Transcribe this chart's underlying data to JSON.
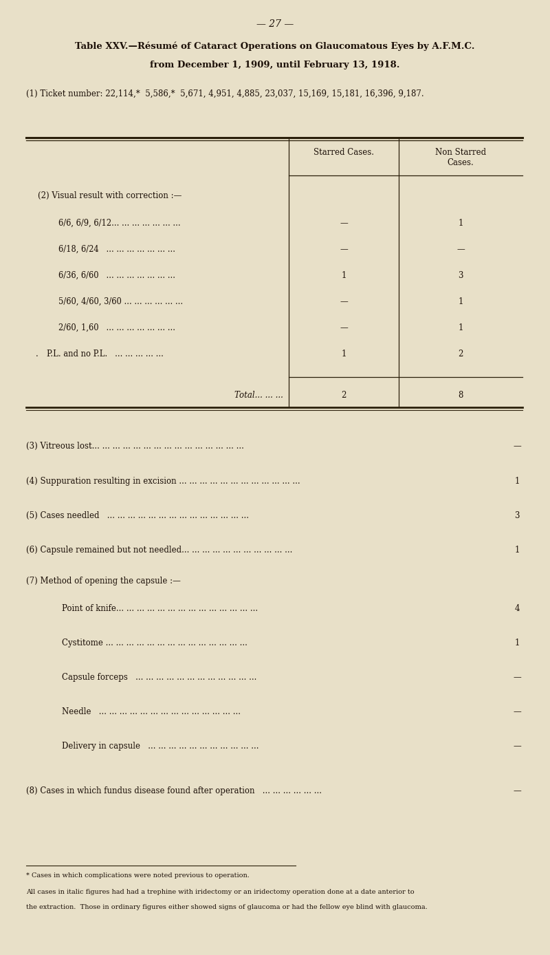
{
  "bg_color": "#e8e0c8",
  "page_number": "— 27 —",
  "title_line1": "Table XXV.—Résumé of Cataract Operations on Glaucomatous Eyes by A.F.M.C.",
  "title_line2": "from December 1, 1909, until February 13, 1918.",
  "ticket_line": "(1) Ticket number: 22,114,*  5,586,*  5,671, 4,951, 4,885, 23,037, 15,169, 15,181, 16,396, 9,187.",
  "col_header1": "Starred Cases.",
  "col_header2": "Non Starred\nCases.",
  "section2_header": "(2) Visual result with correction :—",
  "rows": [
    {
      "label": "6/6, 6/9, 6/12... ... ... ... ... ... ...",
      "starred": "—",
      "non_starred": "1"
    },
    {
      "label": "6/18, 6/24   ... ... ... ... ... ... ...",
      "starred": "—",
      "non_starred": "—"
    },
    {
      "label": "6/36, 6/60   ... ... ... ... ... ... ...",
      "starred": "1",
      "non_starred": "3"
    },
    {
      "label": "5/60, 4/60, 3/60 ... ... ... ... ... ...",
      "starred": "—",
      "non_starred": "1"
    },
    {
      "label": "2/60, 1,60   ... ... ... ... ... ... ...",
      "starred": "—",
      "non_starred": "1"
    },
    {
      "label": "P.L. and no P.L.   ... ... ... ... ...",
      "starred": "1",
      "non_starred": "2",
      "dot": true
    }
  ],
  "total_label": "Total... ... ...",
  "total_starred": "2",
  "total_non_starred": "8",
  "section3": "(3) Vitreous lost... ... ... ... ... ... ... ... ... ... ... ... ... ... ...",
  "section3_val": "—",
  "section4": "(4) Suppuration resulting in excision ... ... ... ... ... ... ... ... ... ... ... ...",
  "section4_val": "1",
  "section5": "(5) Cases needled   ... ... ... ... ... ... ... ... ... ... ... ... ... ...",
  "section5_val": "3",
  "section6": "(6) Capsule remained but not needled... ... ... ... ... ... ... ... ... ... ...",
  "section6_val": "1",
  "section7_header": "(7) Method of opening the capsule :—",
  "method_rows": [
    {
      "label": "Point of knife... ... ... ... ... ... ... ... ... ... ... ... ... ...",
      "val": "4"
    },
    {
      "label": "Cystitome ... ... ... ... ... ... ... ... ... ... ... ... ... ...",
      "val": "1"
    },
    {
      "label": "Capsule forceps   ... ... ... ... ... ... ... ... ... ... ... ...",
      "val": "—"
    },
    {
      "label": "Needle   ... ... ... ... ... ... ... ... ... ... ... ... ... ...",
      "val": "—"
    },
    {
      "label": "Delivery in capsule   ... ... ... ... ... ... ... ... ... ... ...",
      "val": "—"
    }
  ],
  "section8": "(8) Cases in which fundus disease found after operation   ... ... ... ... ... ...",
  "section8_val": "—",
  "footnote1": "* Cases in which complications were noted previous to operation.",
  "footnote2": "All cases in italic figures had had a trephine with iridectomy or an iridectomy operation done at a date anterior to",
  "footnote3": "the extraction.  Those in ordinary figures either showed signs of glaucoma or had the fellow eye blind with glaucoma."
}
